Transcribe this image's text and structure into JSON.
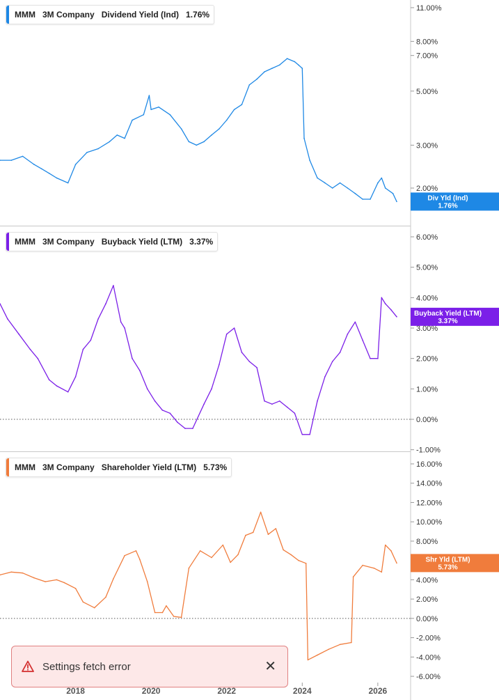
{
  "toast": {
    "message": "Settings fetch error",
    "close": "✕",
    "icon": "warning-triangle-icon",
    "close_icon": "close-icon"
  },
  "chart_data": [
    {
      "type": "line",
      "legend": {
        "ticker": "MMM",
        "company": "3M Company",
        "metric": "Dividend Yield (Ind)",
        "value": "1.76%"
      },
      "badge": {
        "label": "Div Yld (Ind)",
        "value": "1.76%"
      },
      "color": "#1e88e5",
      "scale": "log",
      "ylim": [
        1.6,
        12.0
      ],
      "yticks": [
        {
          "v": 11,
          "label": "11.00%"
        },
        {
          "v": 8,
          "label": "8.00%"
        },
        {
          "v": 7,
          "label": "7.00%"
        },
        {
          "v": 5,
          "label": "5.00%"
        },
        {
          "v": 3,
          "label": "3.00%"
        },
        {
          "v": 2,
          "label": "2.00%"
        }
      ],
      "x": [
        2016.0,
        2016.3,
        2016.6,
        2016.9,
        2017.1,
        2017.3,
        2017.5,
        2017.8,
        2018.0,
        2018.3,
        2018.6,
        2018.9,
        2019.1,
        2019.3,
        2019.5,
        2019.8,
        2019.95,
        2020.0,
        2020.2,
        2020.5,
        2020.8,
        2021.0,
        2021.2,
        2021.4,
        2021.6,
        2021.8,
        2022.0,
        2022.2,
        2022.4,
        2022.6,
        2022.8,
        2023.0,
        2023.2,
        2023.4,
        2023.6,
        2023.8,
        2023.9,
        2024.0,
        2024.05,
        2024.2,
        2024.4,
        2024.6,
        2024.8,
        2025.0,
        2025.2,
        2025.4,
        2025.6,
        2025.8,
        2026.0,
        2026.1,
        2026.2,
        2026.4,
        2026.5
      ],
      "y": [
        2.6,
        2.6,
        2.7,
        2.5,
        2.4,
        2.3,
        2.2,
        2.1,
        2.5,
        2.8,
        2.9,
        3.1,
        3.3,
        3.2,
        3.8,
        4.0,
        4.8,
        4.2,
        4.3,
        4.0,
        3.5,
        3.1,
        3.0,
        3.1,
        3.3,
        3.5,
        3.8,
        4.2,
        4.4,
        5.3,
        5.6,
        6.0,
        6.2,
        6.4,
        6.8,
        6.6,
        6.4,
        6.2,
        3.2,
        2.6,
        2.2,
        2.1,
        2.0,
        2.1,
        2.0,
        1.9,
        1.8,
        1.8,
        2.1,
        2.2,
        2.0,
        1.9,
        1.76
      ],
      "xlim": [
        2016.0,
        2026.5
      ]
    },
    {
      "type": "line",
      "legend": {
        "ticker": "MMM",
        "company": "3M Company",
        "metric": "Buyback Yield (LTM)",
        "value": "3.37%"
      },
      "badge": {
        "label": "Buyback Yield (LTM)",
        "value": "3.37%"
      },
      "color": "#7b1fe8",
      "scale": "linear",
      "ylim": [
        -1.0,
        6.5
      ],
      "zero_line": true,
      "yticks": [
        {
          "v": 6,
          "label": "6.00%"
        },
        {
          "v": 5,
          "label": "5.00%"
        },
        {
          "v": 4,
          "label": "4.00%"
        },
        {
          "v": 3,
          "label": "3.00%"
        },
        {
          "v": 2,
          "label": "2.00%"
        },
        {
          "v": 1,
          "label": "1.00%"
        },
        {
          "v": 0,
          "label": "0.00%"
        },
        {
          "v": -1,
          "label": "-1.00%"
        }
      ],
      "x": [
        2016.0,
        2016.2,
        2016.5,
        2016.8,
        2017.0,
        2017.3,
        2017.5,
        2017.8,
        2018.0,
        2018.2,
        2018.4,
        2018.6,
        2018.8,
        2019.0,
        2019.2,
        2019.3,
        2019.5,
        2019.7,
        2019.9,
        2020.1,
        2020.3,
        2020.5,
        2020.7,
        2020.9,
        2021.1,
        2021.4,
        2021.6,
        2021.8,
        2022.0,
        2022.2,
        2022.4,
        2022.6,
        2022.8,
        2023.0,
        2023.2,
        2023.4,
        2023.6,
        2023.8,
        2024.0,
        2024.2,
        2024.4,
        2024.6,
        2024.8,
        2025.0,
        2025.2,
        2025.4,
        2025.6,
        2025.8,
        2026.0,
        2026.1,
        2026.2,
        2026.35,
        2026.5
      ],
      "y": [
        3.8,
        3.3,
        2.8,
        2.3,
        2.0,
        1.3,
        1.1,
        0.9,
        1.4,
        2.3,
        2.6,
        3.3,
        3.8,
        4.4,
        3.2,
        3.0,
        2.0,
        1.6,
        1.0,
        0.6,
        0.3,
        0.2,
        -0.1,
        -0.3,
        -0.3,
        0.5,
        1.0,
        1.8,
        2.8,
        3.0,
        2.2,
        1.9,
        1.7,
        0.6,
        0.5,
        0.6,
        0.4,
        0.2,
        -0.5,
        -0.5,
        0.6,
        1.4,
        1.9,
        2.2,
        2.8,
        3.2,
        2.6,
        2.0,
        2.0,
        4.0,
        3.8,
        3.6,
        3.37
      ],
      "xlim": [
        2016.0,
        2026.5
      ]
    },
    {
      "type": "line",
      "legend": {
        "ticker": "MMM",
        "company": "3M Company",
        "metric": "Shareholder Yield (LTM)",
        "value": "5.73%"
      },
      "badge": {
        "label": "Shr Yld (LTM)",
        "value": "5.73%"
      },
      "color": "#f07c3c",
      "scale": "linear",
      "ylim": [
        -6.0,
        17.0
      ],
      "zero_line": true,
      "yticks": [
        {
          "v": 16,
          "label": "16.00%"
        },
        {
          "v": 14,
          "label": "14.00%"
        },
        {
          "v": 12,
          "label": "12.00%"
        },
        {
          "v": 10,
          "label": "10.00%"
        },
        {
          "v": 8,
          "label": "8.00%"
        },
        {
          "v": 6,
          "label": "6.00%"
        },
        {
          "v": 4,
          "label": "4.00%"
        },
        {
          "v": 2,
          "label": "2.00%"
        },
        {
          "v": 0,
          "label": "0.00%"
        },
        {
          "v": -2,
          "label": "-2.00%"
        },
        {
          "v": -4,
          "label": "-4.00%"
        },
        {
          "v": -6,
          "label": "-6.00%"
        }
      ],
      "x": [
        2016.0,
        2016.3,
        2016.6,
        2016.9,
        2017.2,
        2017.5,
        2017.7,
        2018.0,
        2018.2,
        2018.5,
        2018.8,
        2019.0,
        2019.3,
        2019.6,
        2019.7,
        2019.9,
        2020.1,
        2020.3,
        2020.4,
        2020.6,
        2020.8,
        2021.0,
        2021.3,
        2021.6,
        2021.9,
        2022.1,
        2022.3,
        2022.5,
        2022.7,
        2022.9,
        2023.1,
        2023.3,
        2023.5,
        2023.7,
        2023.9,
        2024.1,
        2024.15,
        2024.4,
        2024.7,
        2025.0,
        2025.3,
        2025.35,
        2025.6,
        2025.9,
        2026.1,
        2026.2,
        2026.35,
        2026.5
      ],
      "y": [
        4.5,
        4.8,
        4.7,
        4.2,
        3.8,
        4.0,
        3.7,
        3.1,
        1.7,
        1.1,
        2.2,
        4.1,
        6.5,
        7.0,
        6.1,
        3.8,
        0.6,
        0.6,
        1.3,
        0.2,
        0.1,
        5.2,
        7.0,
        6.3,
        7.6,
        5.8,
        6.6,
        8.6,
        8.9,
        11.0,
        8.7,
        9.3,
        7.1,
        6.6,
        6.0,
        5.7,
        -4.3,
        -3.8,
        -3.2,
        -2.7,
        -2.5,
        4.3,
        5.5,
        5.2,
        4.8,
        7.6,
        7.0,
        5.73
      ],
      "xlim": [
        2016.0,
        2026.5
      ]
    }
  ],
  "xaxis": {
    "ticks": [
      {
        "v": 2018,
        "label": "2018"
      },
      {
        "v": 2020,
        "label": "2020"
      },
      {
        "v": 2022,
        "label": "2022"
      },
      {
        "v": 2024,
        "label": "2024"
      },
      {
        "v": 2026,
        "label": "2026"
      }
    ]
  }
}
